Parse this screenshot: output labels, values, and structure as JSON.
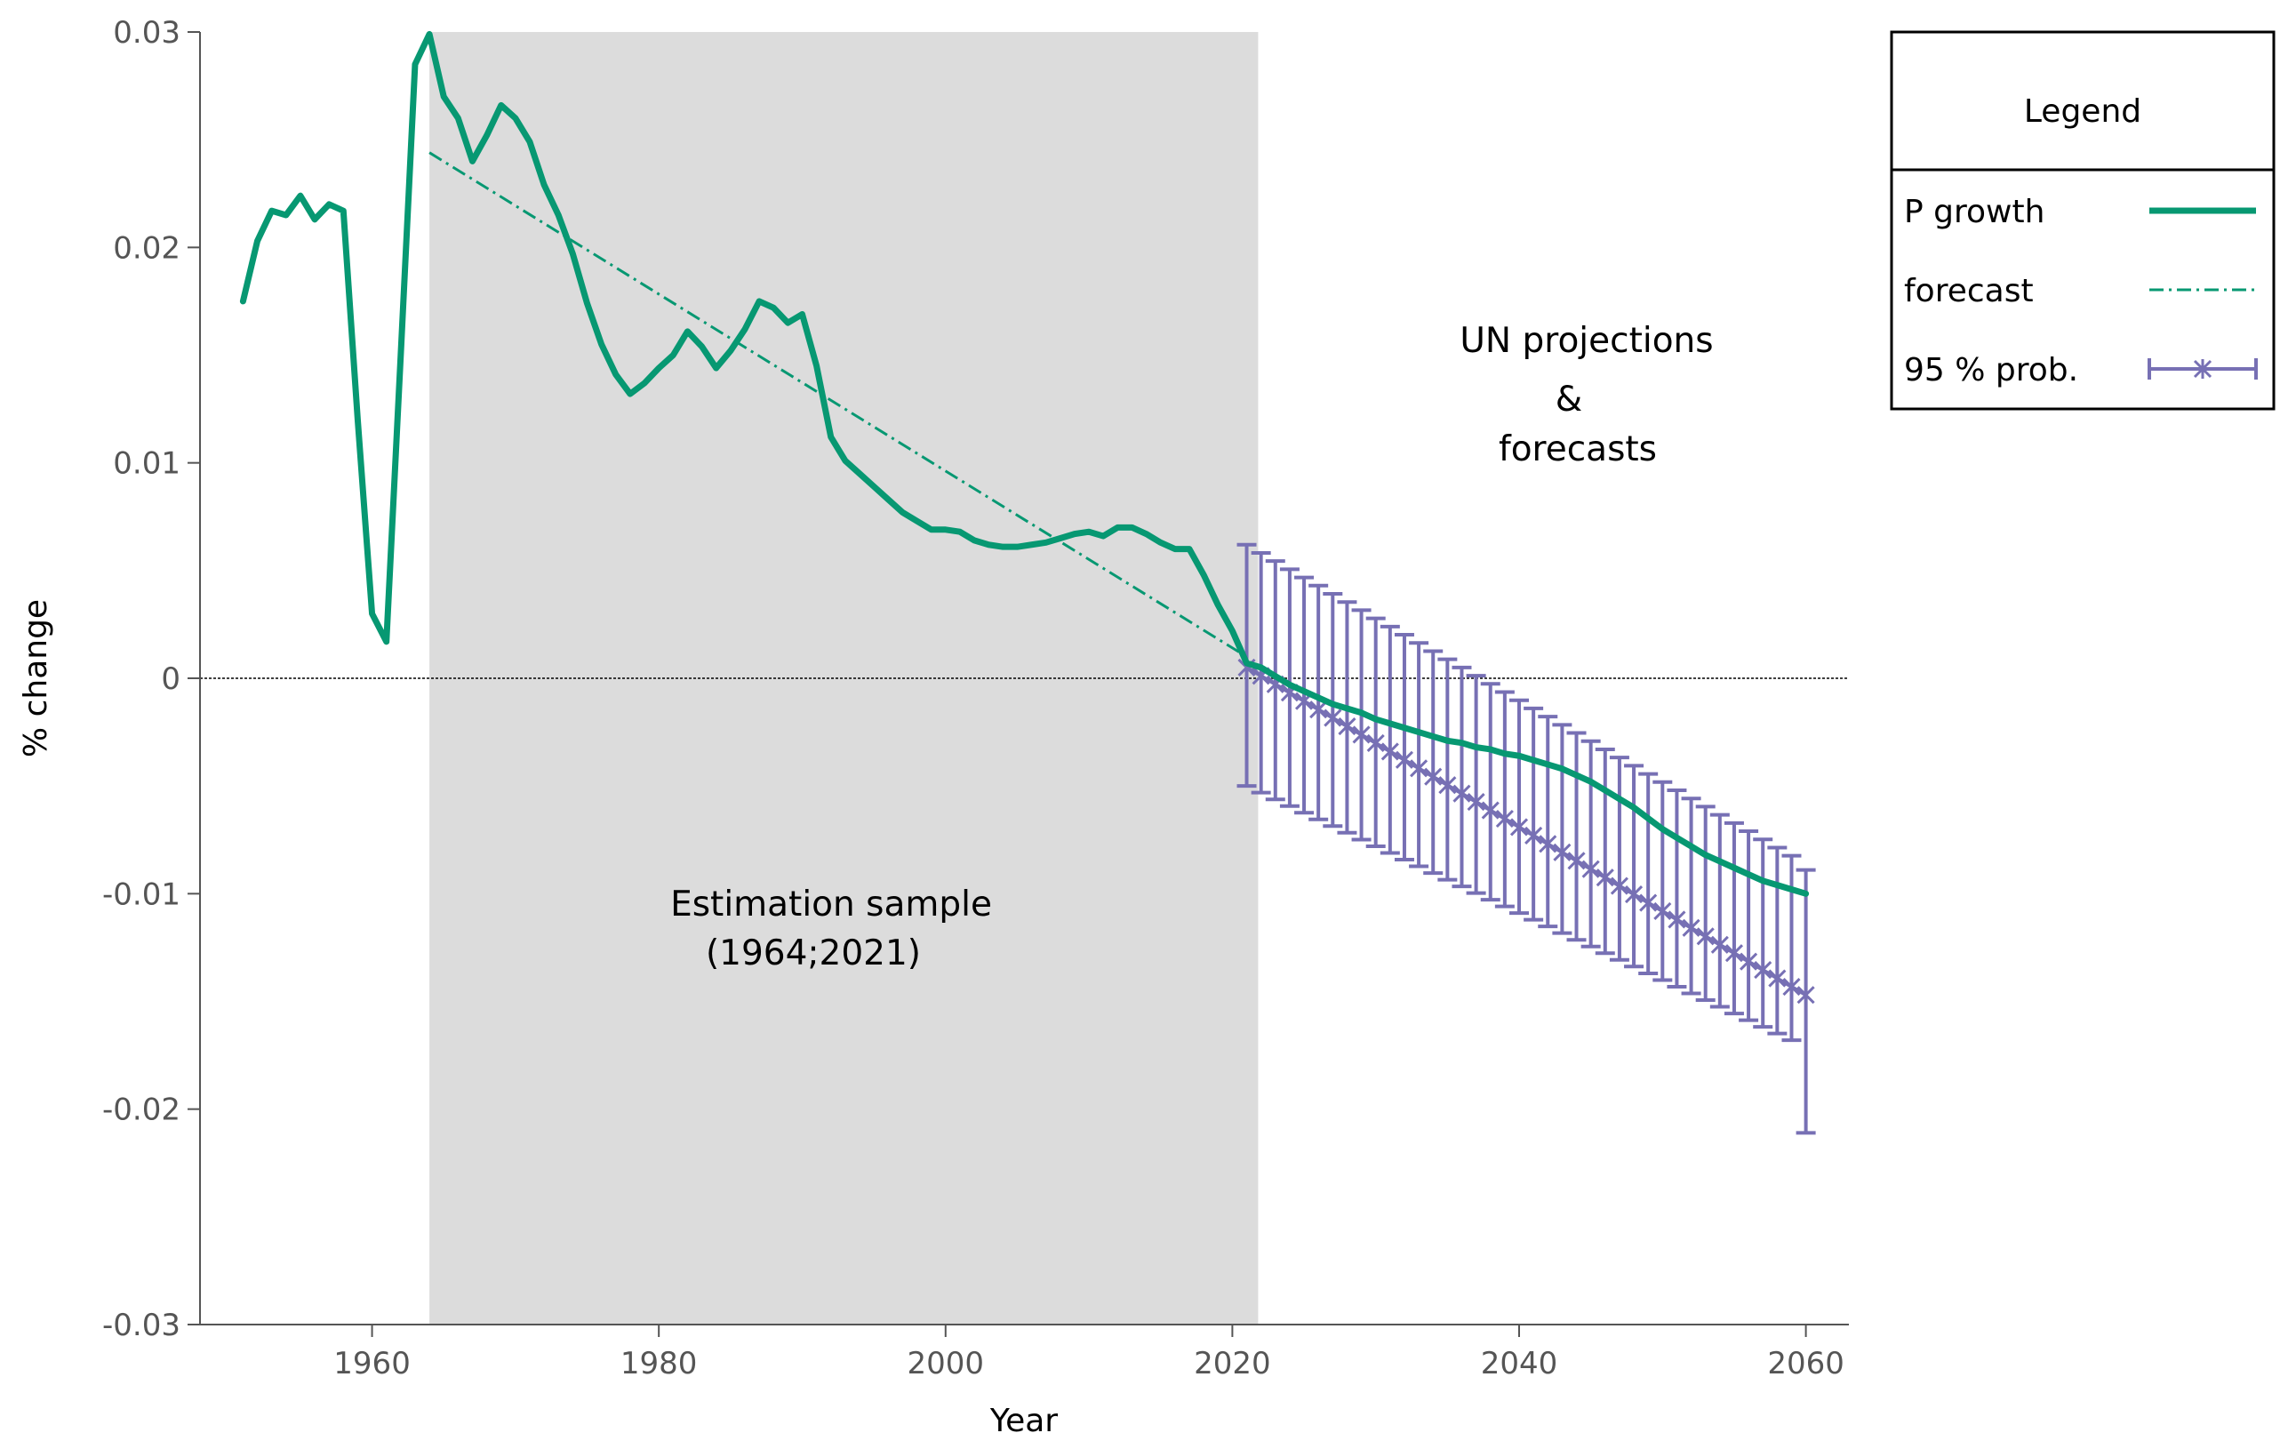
{
  "chart_data": {
    "type": "line",
    "title": "",
    "xlabel": "Year",
    "ylabel": "% change",
    "xlim": [
      1948,
      2063
    ],
    "ylim": [
      -0.03,
      0.03
    ],
    "x_ticks": [
      1960,
      1980,
      2000,
      2020,
      2040,
      2060
    ],
    "y_ticks": [
      0.03,
      0.02,
      0.01,
      0,
      -0.01,
      -0.02,
      -0.03
    ],
    "x_tick_labels": [
      "1960",
      "1980",
      "2000",
      "2020",
      "2040",
      "2060"
    ],
    "y_tick_labels": [
      "0.03",
      "0.02",
      "0.01",
      "0",
      "-0.01",
      "-0.02",
      "-0.03"
    ],
    "shaded_region": {
      "x_start": 1964,
      "x_end": 2021.8,
      "color": "#dcdcdc"
    },
    "zero_line": true,
    "annotations": {
      "estimation_line1": "Estimation sample",
      "estimation_line2": "(1964;2021)",
      "un_line1": "UN projections",
      "un_line2": "&",
      "un_line3": "forecasts"
    },
    "legend": {
      "title": "Legend",
      "position": "top-right",
      "items": [
        {
          "label": "P growth",
          "style": "solid",
          "color": "#079872"
        },
        {
          "label": "forecast",
          "style": "dash-dot",
          "color": "#079872"
        },
        {
          "label": "95 % prob.",
          "style": "errorbar",
          "color": "#7770b4"
        }
      ]
    },
    "series": [
      {
        "name": "P growth",
        "style": "solid",
        "color": "#079872",
        "x": [
          1951,
          1952,
          1953,
          1954,
          1955,
          1956,
          1957,
          1958,
          1959,
          1960,
          1961,
          1962,
          1963,
          1964,
          1965,
          1966,
          1967,
          1968,
          1969,
          1970,
          1971,
          1972,
          1973,
          1974,
          1975,
          1976,
          1977,
          1978,
          1979,
          1980,
          1981,
          1982,
          1983,
          1984,
          1985,
          1986,
          1987,
          1988,
          1989,
          1990,
          1991,
          1992,
          1993,
          1994,
          1995,
          1996,
          1997,
          1998,
          1999,
          2000,
          2001,
          2002,
          2003,
          2004,
          2005,
          2006,
          2007,
          2008,
          2009,
          2010,
          2011,
          2012,
          2013,
          2014,
          2015,
          2016,
          2017,
          2018,
          2019,
          2020,
          2021,
          2022,
          2023,
          2024,
          2025,
          2026,
          2027,
          2028,
          2029,
          2030,
          2031,
          2032,
          2033,
          2034,
          2035,
          2036,
          2037,
          2038,
          2039,
          2040,
          2041,
          2042,
          2043,
          2044,
          2045,
          2046,
          2047,
          2048,
          2049,
          2050,
          2051,
          2052,
          2053,
          2054,
          2055,
          2056,
          2057,
          2058,
          2059,
          2060
        ],
        "values": [
          0.0175,
          0.0203,
          0.0217,
          0.0215,
          0.0224,
          0.0213,
          0.022,
          0.0217,
          0.012,
          0.003,
          0.0017,
          0.015,
          0.0285,
          0.0299,
          0.027,
          0.026,
          0.024,
          0.0252,
          0.0266,
          0.026,
          0.0249,
          0.0229,
          0.0215,
          0.0197,
          0.0174,
          0.0155,
          0.0141,
          0.0132,
          0.0137,
          0.0144,
          0.015,
          0.0161,
          0.0154,
          0.0144,
          0.0152,
          0.0162,
          0.0175,
          0.0172,
          0.0165,
          0.0169,
          0.0145,
          0.0112,
          0.0101,
          0.0095,
          0.0089,
          0.0083,
          0.0077,
          0.0073,
          0.0069,
          0.0069,
          0.0068,
          0.0064,
          0.0062,
          0.0061,
          0.0061,
          0.0062,
          0.0063,
          0.0065,
          0.0067,
          0.0068,
          0.0066,
          0.007,
          0.007,
          0.0067,
          0.0063,
          0.006,
          0.006,
          0.0048,
          0.0034,
          0.0022,
          0.0007,
          0.0005,
          0.0001,
          -0.0003,
          -0.0006,
          -0.0009,
          -0.0012,
          -0.0014,
          -0.0016,
          -0.0019,
          -0.0021,
          -0.0023,
          -0.0025,
          -0.0027,
          -0.0029,
          -0.003,
          -0.0032,
          -0.0033,
          -0.0035,
          -0.0036,
          -0.0038,
          -0.004,
          -0.0042,
          -0.0045,
          -0.0048,
          -0.0052,
          -0.0056,
          -0.006,
          -0.0065,
          -0.007,
          -0.0074,
          -0.0078,
          -0.0082,
          -0.0085,
          -0.0088,
          -0.0091,
          -0.0094,
          -0.0096,
          -0.0098,
          -0.01
        ]
      },
      {
        "name": "forecast",
        "style": "dash-dot",
        "color": "#079872",
        "x": [
          1964,
          2021
        ],
        "values": [
          0.0244,
          0.001
        ]
      },
      {
        "name": "95 % prob.",
        "style": "errorbar",
        "color": "#7770b4",
        "x": [
          2021,
          2022,
          2023,
          2024,
          2025,
          2026,
          2027,
          2028,
          2029,
          2030,
          2031,
          2032,
          2033,
          2034,
          2035,
          2036,
          2037,
          2038,
          2039,
          2040,
          2041,
          2042,
          2043,
          2044,
          2045,
          2046,
          2047,
          2048,
          2049,
          2050,
          2051,
          2052,
          2053,
          2054,
          2055,
          2056,
          2057,
          2058,
          2059,
          2060
        ],
        "center": [
          0.0005,
          0.00011,
          -0.00028,
          -0.00067,
          -0.00106,
          -0.00145,
          -0.00184,
          -0.00223,
          -0.00262,
          -0.00301,
          -0.0034,
          -0.00379,
          -0.00418,
          -0.00457,
          -0.00496,
          -0.00535,
          -0.00574,
          -0.00613,
          -0.00652,
          -0.00691,
          -0.0073,
          -0.00769,
          -0.00808,
          -0.00847,
          -0.00886,
          -0.00925,
          -0.00964,
          -0.01003,
          -0.01042,
          -0.01081,
          -0.0112,
          -0.01159,
          -0.01198,
          -0.01237,
          -0.01276,
          -0.01315,
          -0.01354,
          -0.01393,
          -0.01432,
          -0.0147
        ],
        "lower": [
          -0.005,
          -0.00531,
          -0.00562,
          -0.00593,
          -0.00624,
          -0.00655,
          -0.00686,
          -0.00717,
          -0.00749,
          -0.0078,
          -0.00811,
          -0.00842,
          -0.00873,
          -0.00904,
          -0.00935,
          -0.00966,
          -0.00997,
          -0.01028,
          -0.01059,
          -0.0109,
          -0.01121,
          -0.01152,
          -0.01183,
          -0.01214,
          -0.01245,
          -0.01276,
          -0.01307,
          -0.01338,
          -0.0137,
          -0.01401,
          -0.01432,
          -0.01463,
          -0.01494,
          -0.01525,
          -0.01556,
          -0.01587,
          -0.01618,
          -0.01649,
          -0.0168,
          -0.0211
        ],
        "upper": [
          0.0062,
          0.00582,
          0.00544,
          0.00506,
          0.00468,
          0.0043,
          0.00392,
          0.00354,
          0.00316,
          0.00278,
          0.0024,
          0.00202,
          0.00164,
          0.00126,
          0.00088,
          0.0005,
          0.00012,
          -0.00026,
          -0.00064,
          -0.00102,
          -0.0014,
          -0.00178,
          -0.00216,
          -0.00254,
          -0.00292,
          -0.0033,
          -0.00368,
          -0.00406,
          -0.00444,
          -0.00482,
          -0.0052,
          -0.00558,
          -0.00596,
          -0.00634,
          -0.00672,
          -0.0071,
          -0.00748,
          -0.00786,
          -0.00824,
          -0.0089
        ]
      }
    ]
  }
}
